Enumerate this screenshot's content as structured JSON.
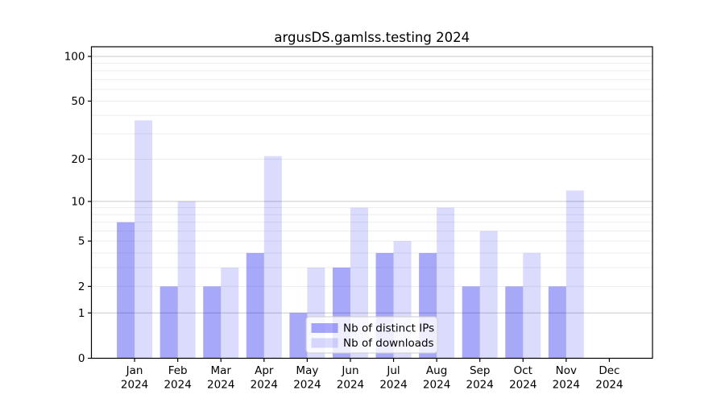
{
  "figure": {
    "title": "argusDS.gamlss.testing 2024"
  },
  "chart_data": {
    "type": "bar",
    "title": "argusDS.gamlss.testing 2024",
    "categories": [
      "Jan",
      "Feb",
      "Mar",
      "Apr",
      "May",
      "Jun",
      "Jul",
      "Aug",
      "Sep",
      "Oct",
      "Nov",
      "Dec"
    ],
    "year_label": "2024",
    "series": [
      {
        "name": "Nb of distinct IPs",
        "values": [
          7,
          2,
          2,
          4,
          1,
          3,
          4,
          4,
          2,
          2,
          2,
          0
        ],
        "color": "#a9a9f7",
        "base_color": "#0000ee",
        "alpha": 0.34
      },
      {
        "name": "Nb of downloads",
        "values": [
          37,
          10,
          3,
          21,
          3,
          9,
          5,
          9,
          6,
          4,
          12,
          0
        ],
        "color": "#dbdbfb",
        "base_color": "#0000ee",
        "alpha": 0.14
      }
    ],
    "xlabel": "",
    "ylabel": "",
    "yscale": "log1p",
    "ylim": [
      0,
      116
    ],
    "ytick_labels": [
      "0",
      "1",
      "2",
      "5",
      "10",
      "20",
      "50",
      "100"
    ],
    "ytick_values": [
      0,
      1,
      2,
      5,
      10,
      20,
      50,
      100
    ],
    "major_gridlines": [
      1,
      10,
      100
    ],
    "minor_gridlines": [
      2,
      3,
      4,
      5,
      6,
      7,
      8,
      9,
      20,
      30,
      40,
      50,
      60,
      70,
      80,
      90
    ],
    "grid": true,
    "legend_position": "lower center",
    "colors": {
      "grid_major": "#c9c9c9",
      "grid_minor": "#ededed",
      "axis": "#000000",
      "text": "#000000",
      "legend_border": "#cccccc",
      "legend_bg_opacity": "0.8"
    }
  }
}
